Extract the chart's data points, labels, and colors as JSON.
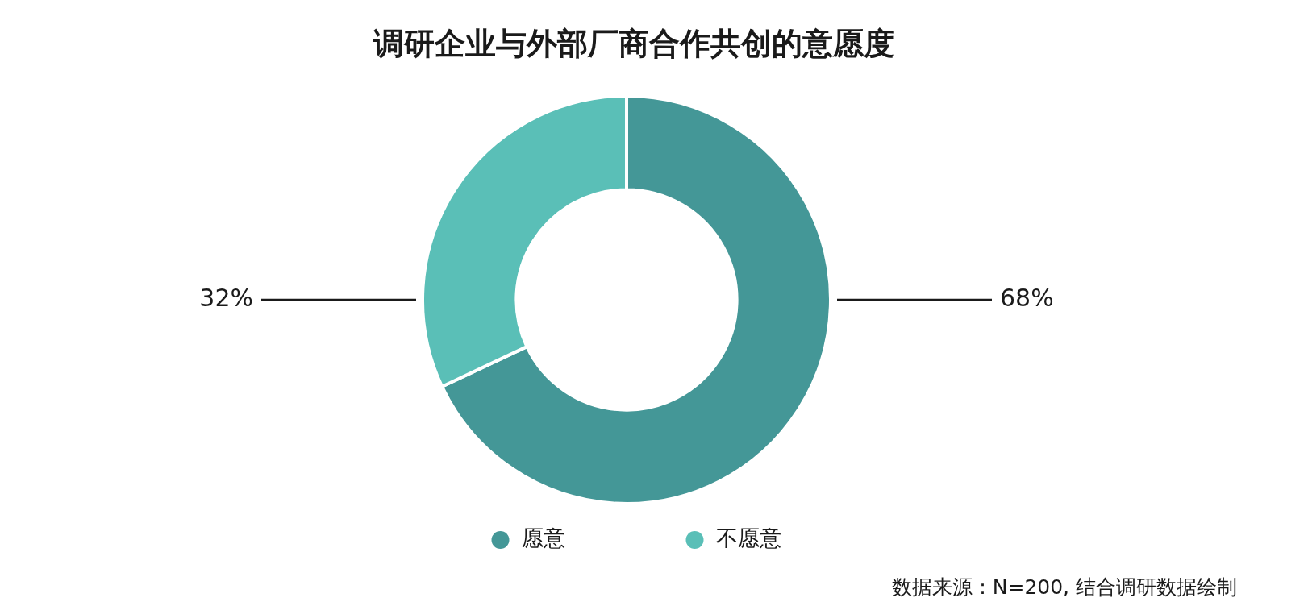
{
  "chart_data": {
    "type": "donut",
    "title": "调研企业与外部厂商合作共创的意愿度",
    "categories": [
      "愿意",
      "不愿意"
    ],
    "values": [
      68,
      32
    ],
    "colors": [
      "#449797",
      "#5abfb7"
    ],
    "value_labels": [
      "68%",
      "32%"
    ],
    "legend": "bottom",
    "annotations": [
      "数据来源：N=200, 结合调研数据绘制"
    ]
  }
}
